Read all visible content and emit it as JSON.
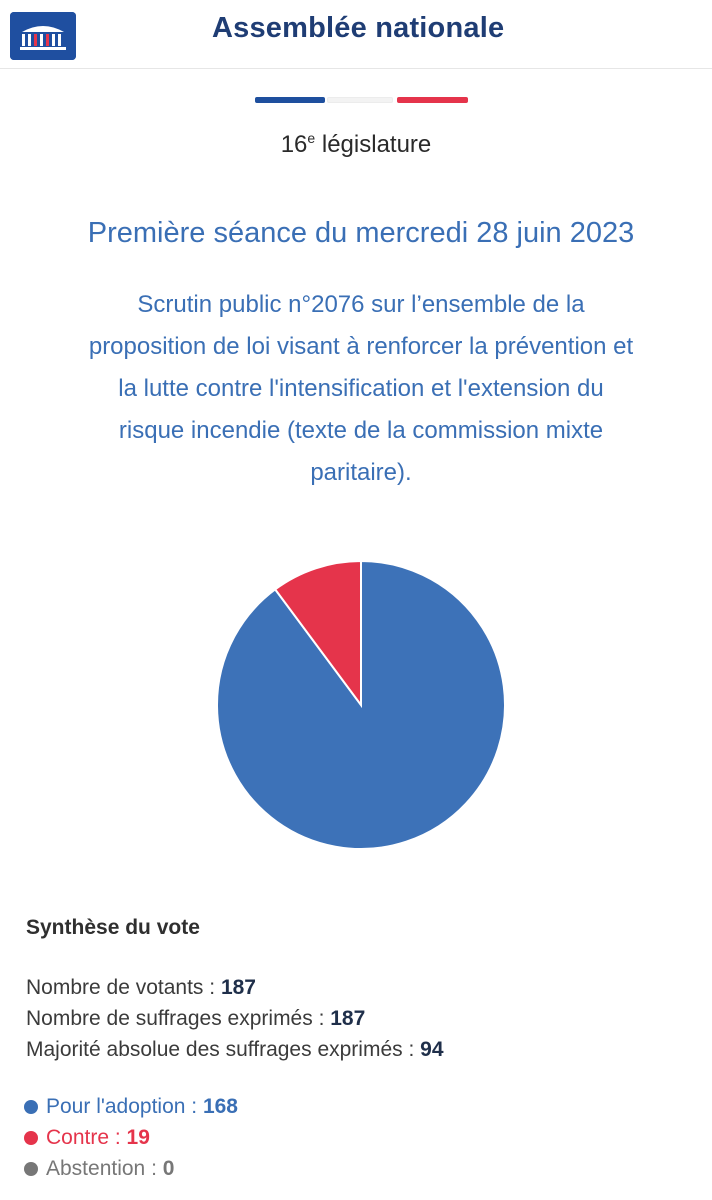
{
  "header": {
    "title": "Assemblée nationale",
    "logo_icon": "assemblee-building-logo"
  },
  "flag_colors": [
    "#1e4f9e",
    "#f3f3f3",
    "#e5344b"
  ],
  "legislature": {
    "number": "16",
    "suffix": "e",
    "label": "législature"
  },
  "seance": "Première séance du mercredi 28 juin 2023",
  "scrutin_lines": [
    "Scrutin public n°2076 sur l’ensemble de la",
    "proposition de loi visant à renforcer la prévention et",
    "la lutte contre l'intensification et l'extension du",
    "risque incendie (texte de la commission mixte",
    "paritaire)."
  ],
  "synthese": {
    "title": "Synthèse du vote",
    "votants_label": "Nombre de votants : ",
    "votants_value": "187",
    "exprimes_label": "Nombre de suffrages exprimés : ",
    "exprimes_value": "187",
    "majorite_label": "Majorité absolue des suffrages exprimés : ",
    "majorite_value": "94"
  },
  "legend": {
    "pour_label": "Pour l'adoption : ",
    "pour_value": "168",
    "contre_label": "Contre : ",
    "contre_value": "19",
    "abst_label": "Abstention : ",
    "abst_value": "0"
  },
  "colors": {
    "pour": "#3a6fb5",
    "contre": "#e5344b",
    "abstention": "#777777"
  },
  "chart_data": {
    "type": "pie",
    "categories": [
      "Pour l'adoption",
      "Contre",
      "Abstention"
    ],
    "values": [
      168,
      19,
      0
    ],
    "colors": [
      "#3d72b8",
      "#e5344b",
      "#777777"
    ]
  }
}
